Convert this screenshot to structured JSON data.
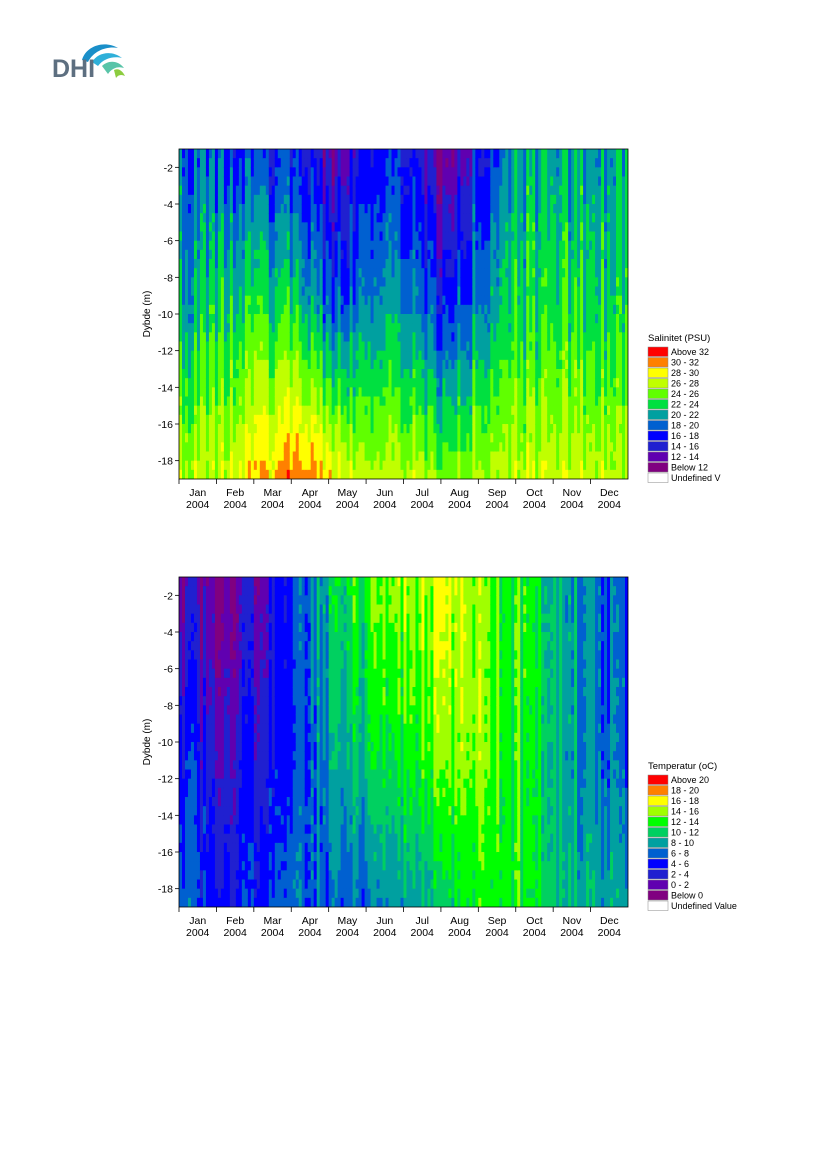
{
  "logo": {
    "text": "DHI",
    "icon": "dhi-wave-logo"
  },
  "colors": {
    "logo_text": "#5d6f80",
    "logo_waves": [
      "#1a8fc9",
      "#2fb0d9",
      "#59c4a8",
      "#8ccc3f"
    ]
  },
  "chart_data": [
    {
      "type": "heatmap",
      "ylabel": "Dybde (m)",
      "y_ticks": [
        "-2",
        "-4",
        "-6",
        "-8",
        "-10",
        "-12",
        "-14",
        "-16",
        "-18"
      ],
      "ylim": [
        -19,
        -1
      ],
      "x_ticks": [
        {
          "month": "Jan",
          "year": "2004"
        },
        {
          "month": "Feb",
          "year": "2004"
        },
        {
          "month": "Mar",
          "year": "2004"
        },
        {
          "month": "Apr",
          "year": "2004"
        },
        {
          "month": "May",
          "year": "2004"
        },
        {
          "month": "Jun",
          "year": "2004"
        },
        {
          "month": "Jul",
          "year": "2004"
        },
        {
          "month": "Aug",
          "year": "2004"
        },
        {
          "month": "Sep",
          "year": "2004"
        },
        {
          "month": "Oct",
          "year": "2004"
        },
        {
          "month": "Nov",
          "year": "2004"
        },
        {
          "month": "Dec",
          "year": "2004"
        }
      ],
      "legend_title": "Salinitet (PSU)",
      "legend_placement": "right",
      "legend": [
        {
          "label": "Above 32",
          "color": "#ff0000"
        },
        {
          "label": "30 - 32",
          "color": "#ff8000"
        },
        {
          "label": "28 - 30",
          "color": "#ffff00"
        },
        {
          "label": "26 - 28",
          "color": "#c0ff00"
        },
        {
          "label": "24 - 26",
          "color": "#60ff00"
        },
        {
          "label": "22 - 24",
          "color": "#00e040"
        },
        {
          "label": "20 - 22",
          "color": "#00a0a0"
        },
        {
          "label": "18 - 20",
          "color": "#0060d0"
        },
        {
          "label": "16 - 18",
          "color": "#0000ff"
        },
        {
          "label": "14 - 16",
          "color": "#2020d0"
        },
        {
          "label": "12 - 14",
          "color": "#6000b0"
        },
        {
          "label": "Below 12",
          "color": "#800080"
        },
        {
          "label": "Undefined V",
          "color": "#ffffff"
        }
      ],
      "months_profiles": [
        {
          "month": "Jan",
          "top_class": 7,
          "mid_class": 6,
          "bottom_class": 3
        },
        {
          "month": "Feb",
          "top_class": 7,
          "mid_class": 5,
          "bottom_class": 3
        },
        {
          "month": "Mar",
          "top_class": 8,
          "mid_class": 5,
          "bottom_class": 2
        },
        {
          "month": "Apr",
          "top_class": 8,
          "mid_class": 5,
          "bottom_class": 1
        },
        {
          "month": "May",
          "top_class": 10,
          "mid_class": 7,
          "bottom_class": 2
        },
        {
          "month": "Jun",
          "top_class": 8,
          "mid_class": 6,
          "bottom_class": 3
        },
        {
          "month": "Jul",
          "top_class": 8,
          "mid_class": 6,
          "bottom_class": 3
        },
        {
          "month": "Aug",
          "top_class": 11,
          "mid_class": 8,
          "bottom_class": 4
        },
        {
          "month": "Sep",
          "top_class": 8,
          "mid_class": 6,
          "bottom_class": 3
        },
        {
          "month": "Oct",
          "top_class": 6,
          "mid_class": 5,
          "bottom_class": 3
        },
        {
          "month": "Nov",
          "top_class": 6,
          "mid_class": 5,
          "bottom_class": 3
        },
        {
          "month": "Dec",
          "top_class": 6,
          "mid_class": 5,
          "bottom_class": 3
        }
      ]
    },
    {
      "type": "heatmap",
      "ylabel": "Dybde (m)",
      "y_ticks": [
        "-2",
        "-4",
        "-6",
        "-8",
        "-10",
        "-12",
        "-14",
        "-16",
        "-18"
      ],
      "ylim": [
        -19,
        -1
      ],
      "x_ticks": [
        {
          "month": "Jan",
          "year": "2004"
        },
        {
          "month": "Feb",
          "year": "2004"
        },
        {
          "month": "Mar",
          "year": "2004"
        },
        {
          "month": "Apr",
          "year": "2004"
        },
        {
          "month": "May",
          "year": "2004"
        },
        {
          "month": "Jun",
          "year": "2004"
        },
        {
          "month": "Jul",
          "year": "2004"
        },
        {
          "month": "Aug",
          "year": "2004"
        },
        {
          "month": "Sep",
          "year": "2004"
        },
        {
          "month": "Oct",
          "year": "2004"
        },
        {
          "month": "Nov",
          "year": "2004"
        },
        {
          "month": "Dec",
          "year": "2004"
        }
      ],
      "legend_title": "Temperatur (oC)",
      "legend_placement": "right",
      "legend": [
        {
          "label": "Above 20",
          "color": "#ff0000"
        },
        {
          "label": "18 - 20",
          "color": "#ff8000"
        },
        {
          "label": "16 - 18",
          "color": "#ffff00"
        },
        {
          "label": "14 - 16",
          "color": "#a0ff00"
        },
        {
          "label": "12 - 14",
          "color": "#00ff00"
        },
        {
          "label": "10 - 12",
          "color": "#00d060"
        },
        {
          "label": "8 - 10",
          "color": "#00a0a0"
        },
        {
          "label": "6 - 8",
          "color": "#0060d0"
        },
        {
          "label": "4 - 6",
          "color": "#0000ff"
        },
        {
          "label": "2 - 4",
          "color": "#2020d0"
        },
        {
          "label": "0 - 2",
          "color": "#6000b0"
        },
        {
          "label": "Below 0",
          "color": "#800080"
        },
        {
          "label": "Undefined Value",
          "color": "#ffffff"
        }
      ],
      "months_profiles": [
        {
          "month": "Jan",
          "top_class": 10,
          "mid_class": 8,
          "bottom_class": 7
        },
        {
          "month": "Feb",
          "top_class": 10,
          "mid_class": 9,
          "bottom_class": 8
        },
        {
          "month": "Mar",
          "top_class": 10,
          "mid_class": 9,
          "bottom_class": 8
        },
        {
          "month": "Apr",
          "top_class": 8,
          "mid_class": 8,
          "bottom_class": 7
        },
        {
          "month": "May",
          "top_class": 5,
          "mid_class": 6,
          "bottom_class": 7
        },
        {
          "month": "Jun",
          "top_class": 4,
          "mid_class": 5,
          "bottom_class": 7
        },
        {
          "month": "Jul",
          "top_class": 3,
          "mid_class": 4,
          "bottom_class": 6
        },
        {
          "month": "Aug",
          "top_class": 2,
          "mid_class": 3,
          "bottom_class": 5
        },
        {
          "month": "Sep",
          "top_class": 3,
          "mid_class": 3,
          "bottom_class": 4
        },
        {
          "month": "Oct",
          "top_class": 4,
          "mid_class": 4,
          "bottom_class": 4
        },
        {
          "month": "Nov",
          "top_class": 5,
          "mid_class": 5,
          "bottom_class": 5
        },
        {
          "month": "Dec",
          "top_class": 7,
          "mid_class": 7,
          "bottom_class": 6
        }
      ]
    }
  ]
}
